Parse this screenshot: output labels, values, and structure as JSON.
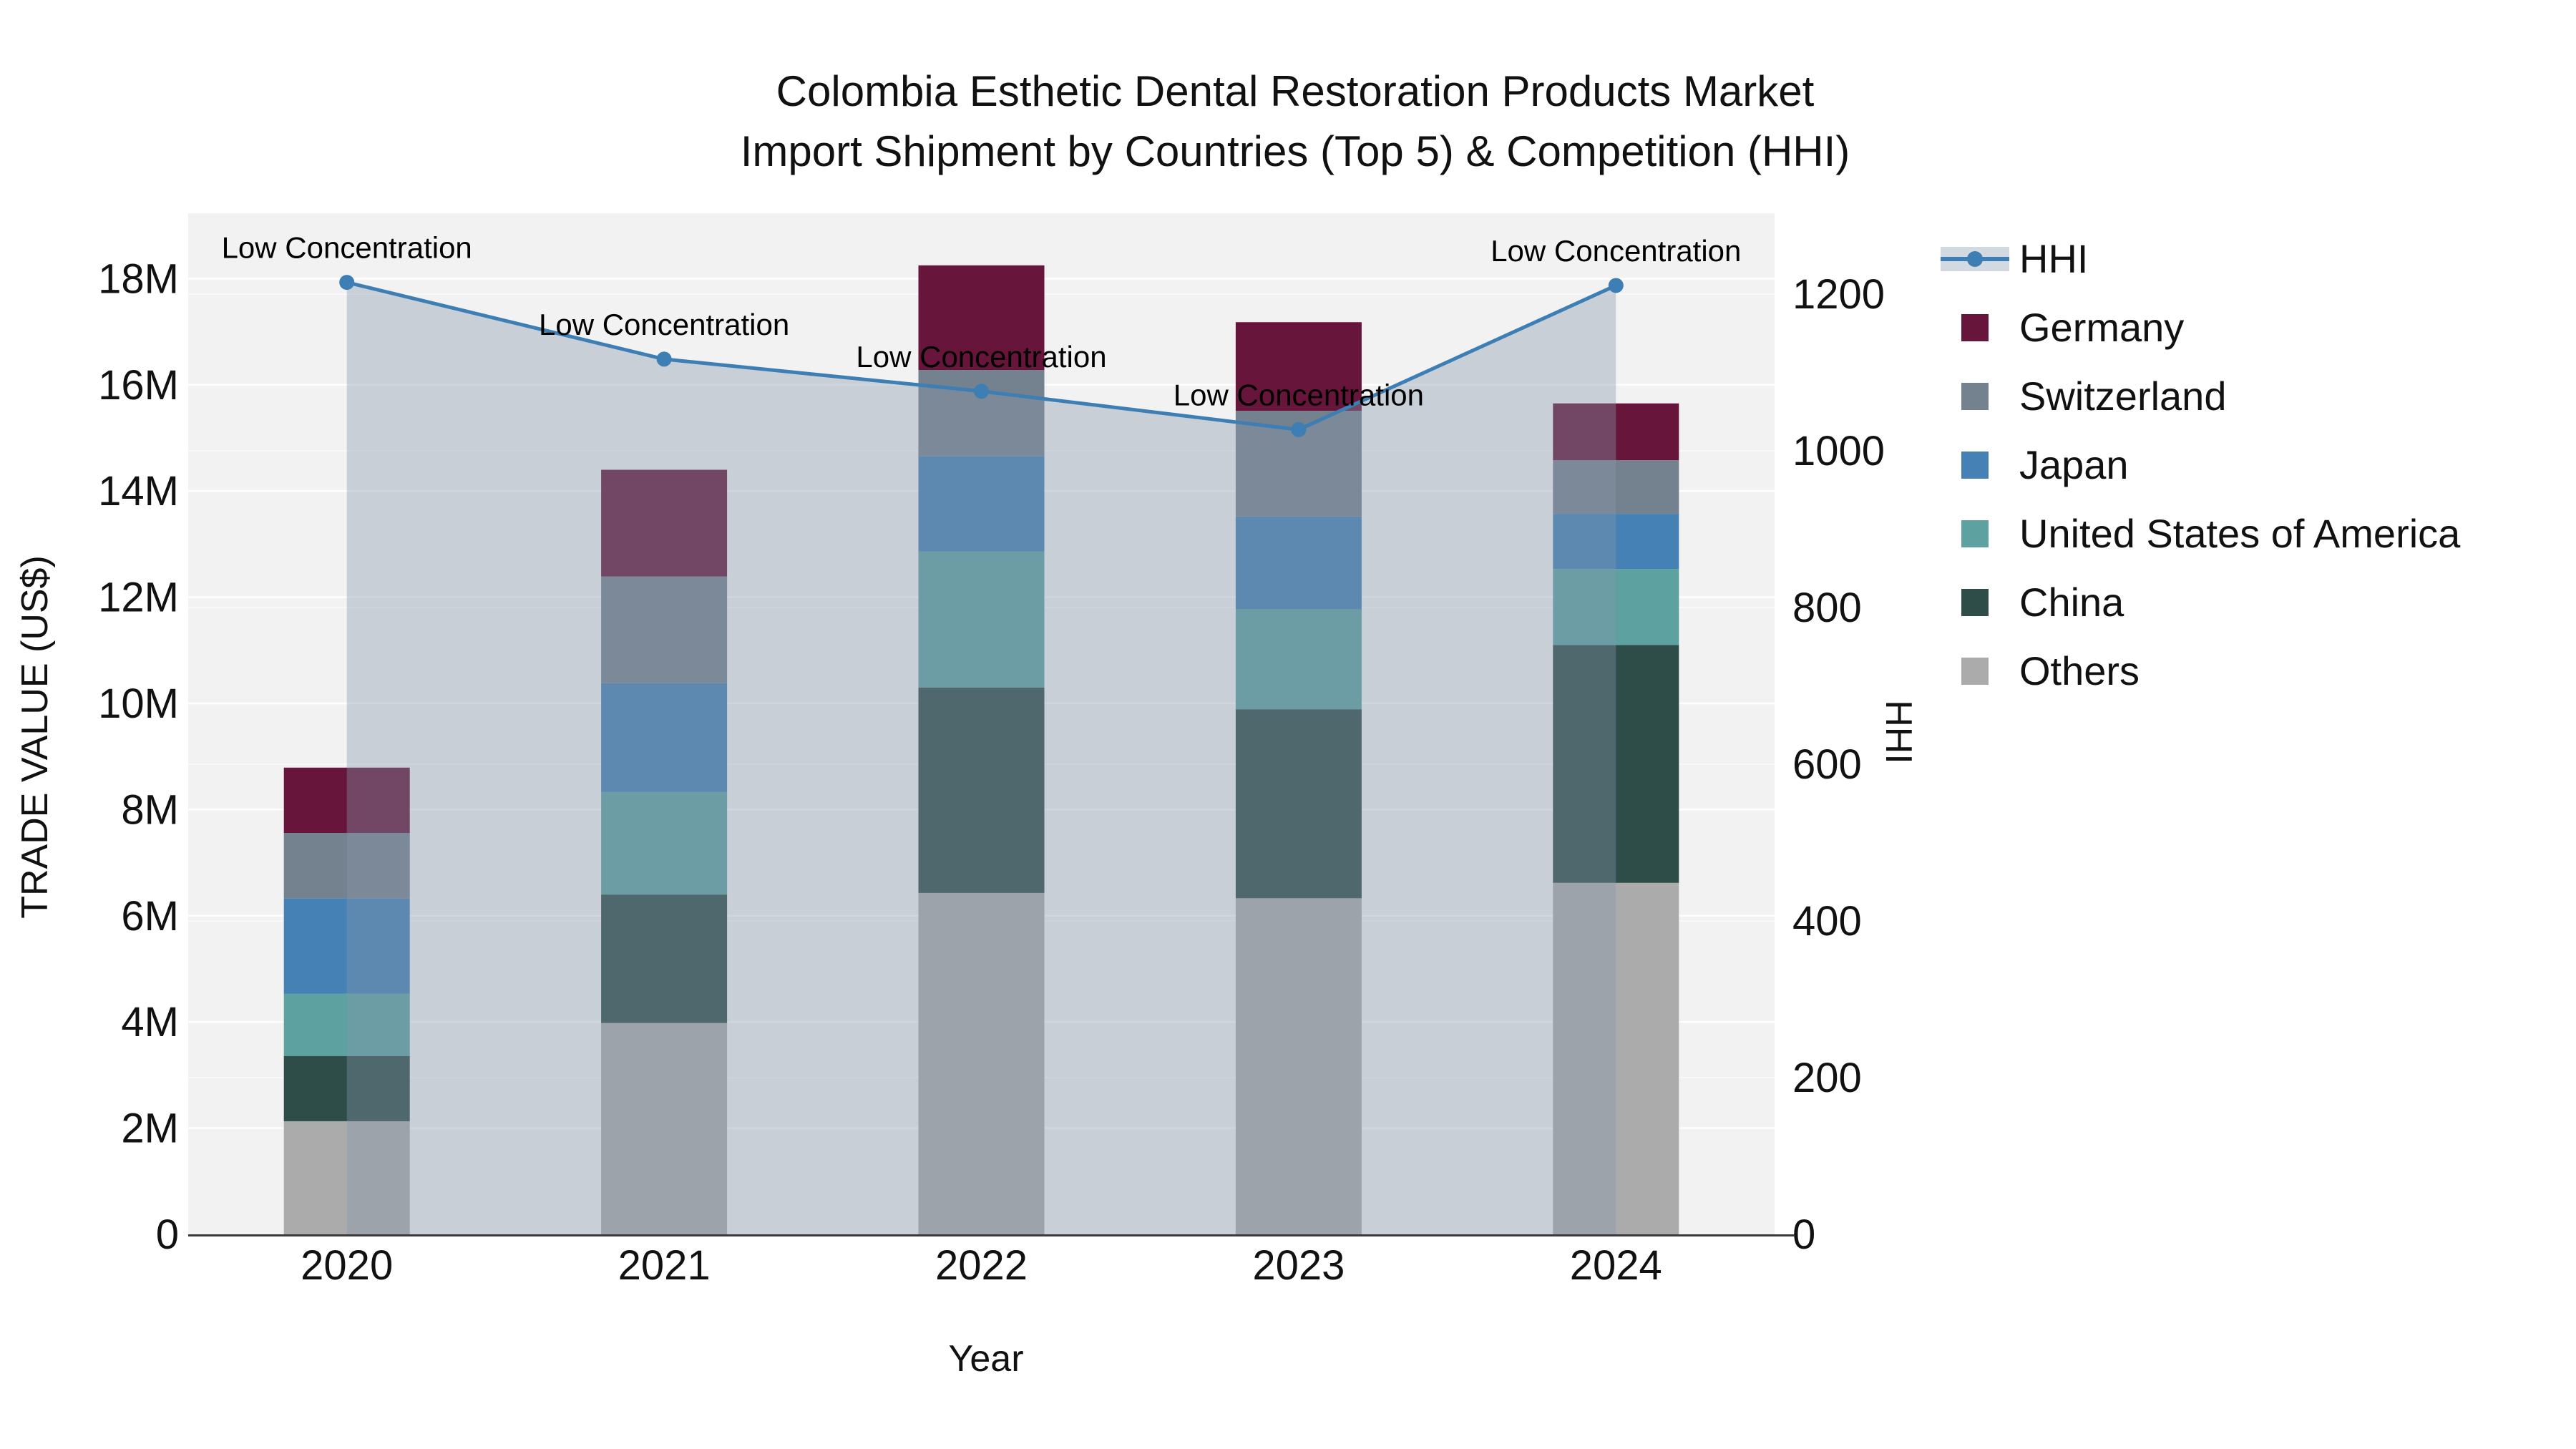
{
  "title": {
    "line1": "Colombia Esthetic Dental Restoration Products Market",
    "line2": "Import Shipment by Countries (Top 5) & Competition (HHI)"
  },
  "axes": {
    "left": {
      "title": "TRADE VALUE (US$)",
      "tick_labels": [
        "0",
        "2M",
        "4M",
        "6M",
        "8M",
        "10M",
        "12M",
        "14M",
        "16M",
        "18M"
      ],
      "tick_values": [
        0,
        2,
        4,
        6,
        8,
        10,
        12,
        14,
        16,
        18
      ]
    },
    "right": {
      "title": "HHI",
      "tick_labels": [
        "0",
        "200",
        "400",
        "600",
        "800",
        "1000",
        "1200"
      ],
      "tick_values": [
        0,
        200,
        400,
        600,
        800,
        1000,
        1200
      ]
    },
    "bottom": {
      "title": "Year"
    }
  },
  "legend": {
    "items": [
      {
        "label": "HHI",
        "type": "line",
        "color": "#3d7eb4",
        "band_color": "#d3d9e1"
      },
      {
        "label": "Germany",
        "type": "swatch",
        "color": "#67153a"
      },
      {
        "label": "Switzerland",
        "type": "swatch",
        "color": "#74818f"
      },
      {
        "label": "Japan",
        "type": "swatch",
        "color": "#4581b5"
      },
      {
        "label": "United States of America",
        "type": "swatch",
        "color": "#5da1a0"
      },
      {
        "label": "China",
        "type": "swatch",
        "color": "#2e4c48"
      },
      {
        "label": "Others",
        "type": "swatch",
        "color": "#ababab"
      }
    ]
  },
  "chart_data": {
    "type": "combo: stacked-bar + line",
    "categories": [
      "2020",
      "2021",
      "2022",
      "2023",
      "2024"
    ],
    "bar_value_unit": "Trade value (US$ millions, estimated from axis)",
    "series": [
      {
        "name": "Germany",
        "color": "#67153a",
        "values": [
          1.23,
          2.01,
          1.97,
          1.67,
          1.07
        ]
      },
      {
        "name": "Switzerland",
        "color": "#74818f",
        "values": [
          1.23,
          2.01,
          1.62,
          1.99,
          1.01
        ]
      },
      {
        "name": "Japan",
        "color": "#4581b5",
        "values": [
          1.8,
          2.05,
          1.8,
          1.75,
          1.04
        ]
      },
      {
        "name": "United States of America",
        "color": "#5da1a0",
        "values": [
          1.17,
          1.93,
          2.56,
          1.88,
          1.43
        ]
      },
      {
        "name": "China",
        "color": "#2e4c48",
        "values": [
          1.23,
          2.42,
          3.87,
          3.56,
          4.48
        ]
      },
      {
        "name": "Others",
        "color": "#ababab",
        "values": [
          2.13,
          3.98,
          6.43,
          6.33,
          6.62
        ]
      }
    ],
    "stack_order_bottom_to_top": [
      "Others",
      "China",
      "United States of America",
      "Japan",
      "Switzerland",
      "Germany"
    ],
    "bar_totals": [
      8.79,
      14.4,
      18.25,
      17.18,
      15.65
    ],
    "line_series": {
      "name": "HHI",
      "axis": "right",
      "color": "#3d7eb4",
      "values": [
        1215,
        1117,
        1076,
        1027,
        1211
      ],
      "area_fill": "rgba(134,149,171,0.38)"
    },
    "annotations": [
      {
        "text": "Low Concentration",
        "category": "2020"
      },
      {
        "text": "Low Concentration",
        "category": "2021"
      },
      {
        "text": "Low Concentration",
        "category": "2022"
      },
      {
        "text": "Low Concentration",
        "category": "2023"
      },
      {
        "text": "Low Concentration",
        "category": "2024"
      }
    ],
    "ylim_left_musd": [
      0,
      19.2
    ],
    "ylim_right_hhi": [
      0,
      1300
    ],
    "grid": "horizontal",
    "legend_position": "right",
    "xlabel": "Year",
    "ylabel": "TRADE VALUE (US$)",
    "ylabel_right": "HHI",
    "plot_background": "#f2f2f3"
  }
}
